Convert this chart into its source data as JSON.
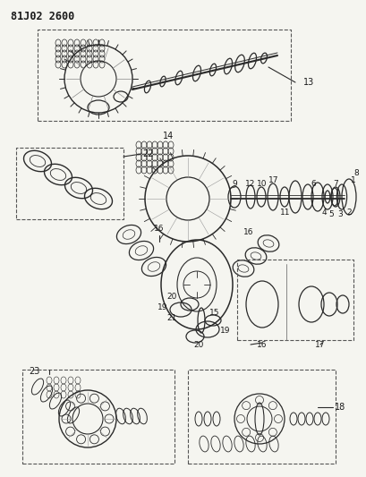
{
  "title": "81J02 2600",
  "bg_color": "#f5f5f0",
  "line_color": "#2a2a2a",
  "dash_color": "#555555",
  "text_color": "#1a1a1a",
  "title_fontsize": 8.5,
  "label_fontsize": 7,
  "fig_width": 4.09,
  "fig_height": 5.33,
  "dpi": 100
}
